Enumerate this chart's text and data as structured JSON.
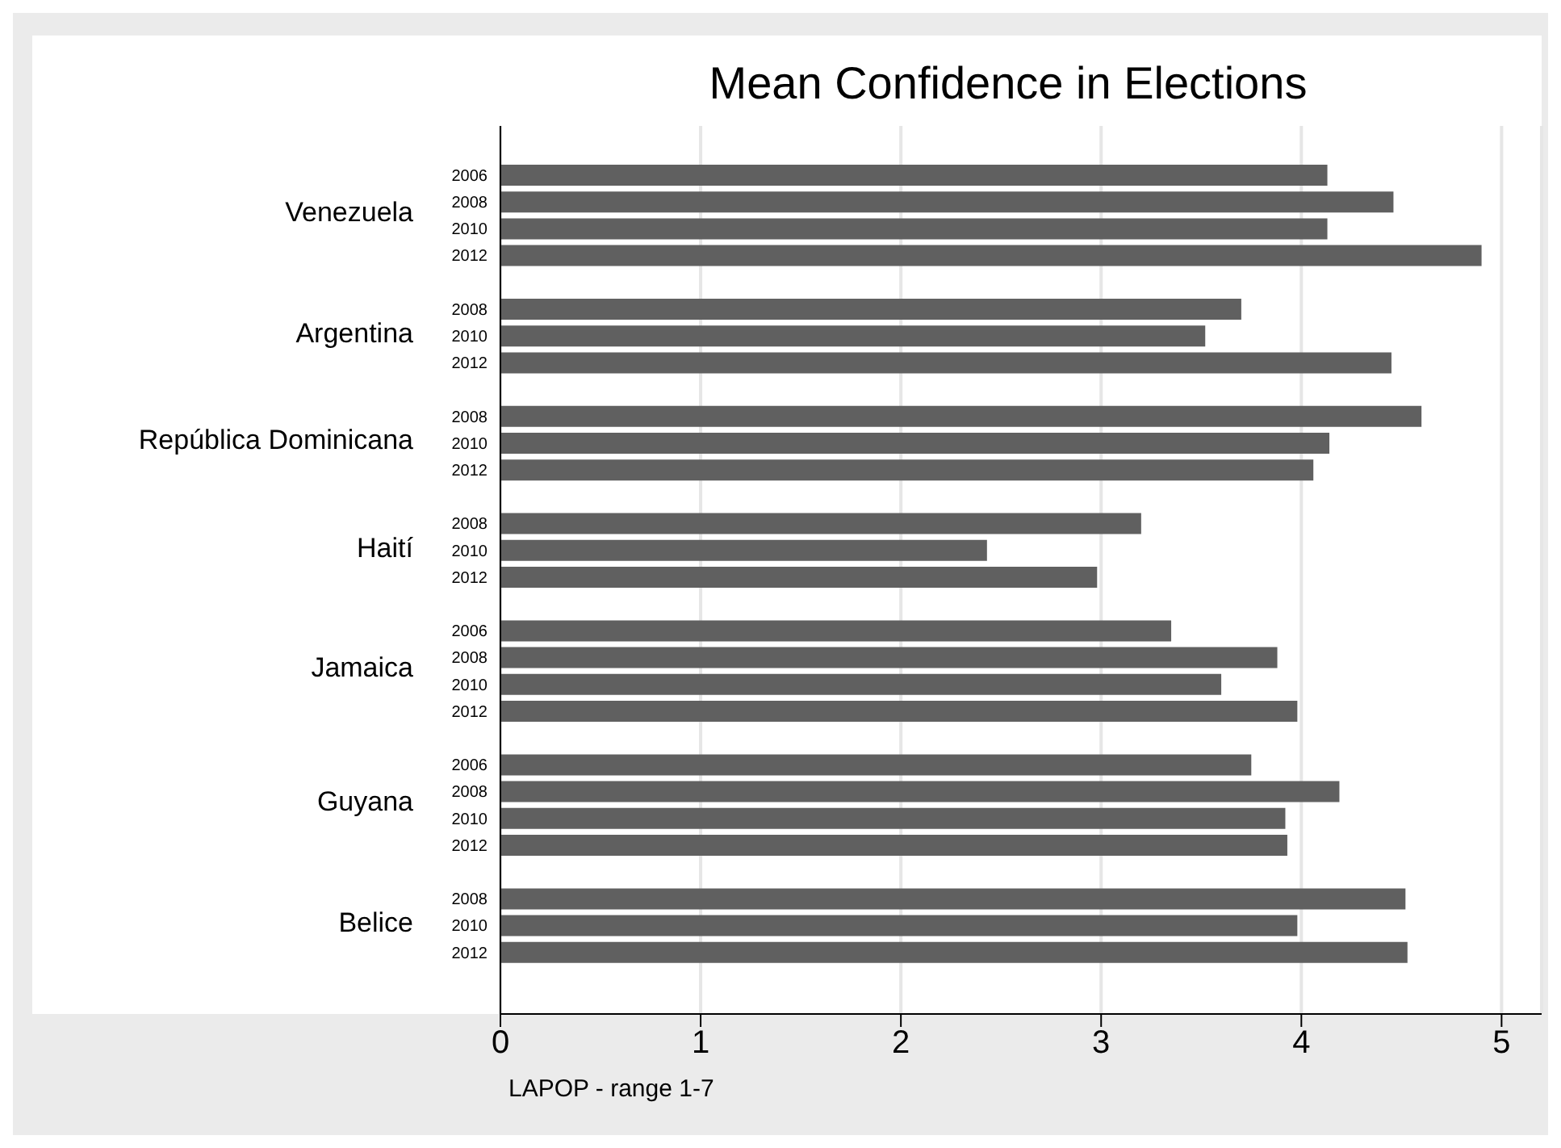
{
  "chart_data": {
    "type": "bar",
    "orientation": "horizontal",
    "title": "Mean Confidence in Elections",
    "xlabel": "LAPOP - range 1-7",
    "categories": [
      "2006",
      "2008",
      "2010",
      "2012",
      null,
      "2008",
      "2010",
      "2012",
      null,
      "2008",
      "2010",
      "2012",
      null,
      "2008",
      "2010",
      "2012",
      null,
      "2006",
      "2008",
      "2010",
      "2012",
      null,
      "2006",
      "2008",
      "2010",
      "2012",
      null,
      "2008",
      "2010",
      "2012"
    ],
    "series": [
      {
        "color": "#606060",
        "values": [
          4.13,
          4.46,
          4.13,
          4.9,
          null,
          3.7,
          3.52,
          4.45,
          null,
          4.6,
          4.14,
          4.06,
          null,
          3.2,
          2.43,
          2.98,
          null,
          3.35,
          3.88,
          3.6,
          3.98,
          null,
          3.75,
          4.19,
          3.92,
          3.93,
          null,
          4.52,
          3.98,
          4.53
        ]
      }
    ],
    "annotations": [
      "Venezuela",
      "Argentina",
      "República Dominicana",
      "Haití",
      "Jamaica",
      "Guyana",
      "Belice"
    ],
    "xlim": [
      0,
      5.2
    ],
    "xticks": [
      0,
      1,
      2,
      3,
      4,
      5
    ],
    "grid": "x"
  }
}
